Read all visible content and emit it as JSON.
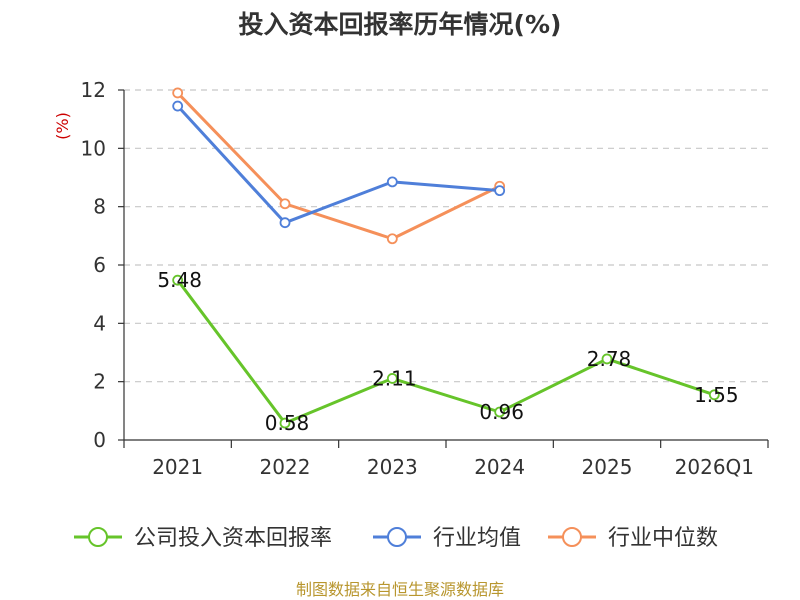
{
  "chart_data": {
    "type": "line",
    "title": "投入资本回报率历年情况(%)",
    "ylabel": "(%)",
    "xlabel": "",
    "categories": [
      "2021",
      "2022",
      "2023",
      "2024",
      "2025",
      "2026Q1"
    ],
    "ylim": [
      0,
      12
    ],
    "yticks": [
      0,
      2,
      4,
      6,
      8,
      10,
      12
    ],
    "grid": true,
    "legend_position": "bottom",
    "series": [
      {
        "name": "公司投入资本回报率",
        "color": "#66c42a",
        "values": [
          5.48,
          0.58,
          2.11,
          0.96,
          2.78,
          1.55
        ],
        "labels": [
          "5.48",
          "0.58",
          "2.11",
          "0.96",
          "2.78",
          "1.55"
        ]
      },
      {
        "name": "行业均值",
        "color": "#4f7fd9",
        "values": [
          11.45,
          7.45,
          8.85,
          8.55,
          null,
          null
        ]
      },
      {
        "name": "行业中位数",
        "color": "#f5905a",
        "values": [
          11.9,
          8.1,
          6.9,
          8.7,
          null,
          null
        ]
      }
    ]
  },
  "footer": "制图数据来自恒生聚源数据库"
}
